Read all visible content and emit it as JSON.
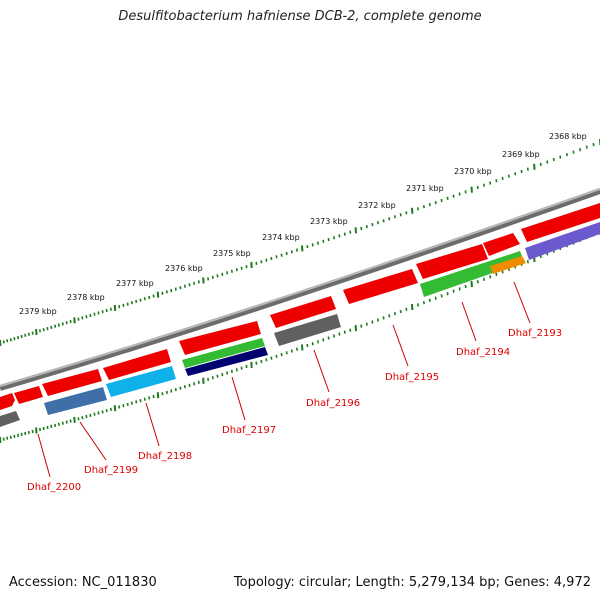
{
  "title": "Desulfitobacterium hafniense DCB-2, complete genome",
  "footer": {
    "accession": "Accession: NC_011830",
    "topology": "Topology: circular; Length: 5,279,134 bp; Genes: 4,972"
  },
  "colors": {
    "background": "#ffffff",
    "backbone": "#808080",
    "tick": "#1e7a1e",
    "gene_label": "#dd0000",
    "cds_forward": "#ee0000",
    "gray_feature": "#606060",
    "steel_blue": "#3f6fa8",
    "cyan": "#10b0e8",
    "green": "#33bb33",
    "navy": "#000070",
    "orange": "#f08c00",
    "slate_blue": "#6a5acd"
  },
  "kbp_labels": [
    "2368 kbp",
    "2369 kbp",
    "2370 kbp",
    "2371 kbp",
    "2372 kbp",
    "2373 kbp",
    "2374 kbp",
    "2375 kbp",
    "2376 kbp",
    "2377 kbp",
    "2378 kbp",
    "2379 kbp"
  ],
  "gene_labels": [
    "Dhaf_2193",
    "Dhaf_2194",
    "Dhaf_2195",
    "Dhaf_2196",
    "Dhaf_2197",
    "Dhaf_2198",
    "Dhaf_2199",
    "Dhaf_2200"
  ]
}
